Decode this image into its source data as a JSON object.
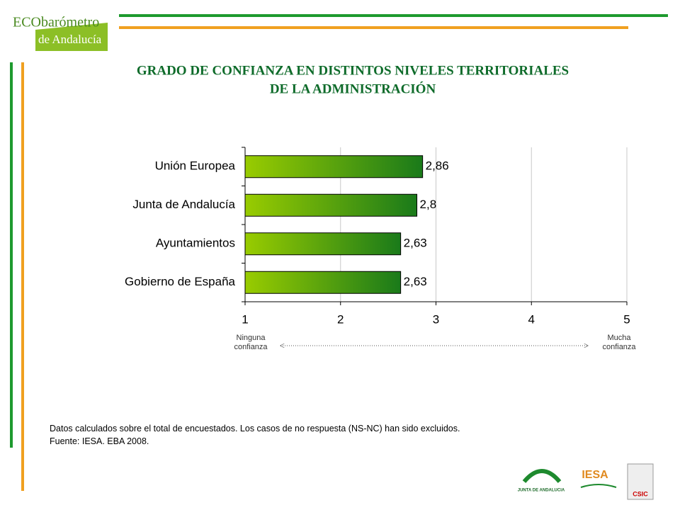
{
  "header": {
    "logo_top": "ECObarómetro",
    "logo_bottom": "de Andalucía"
  },
  "chart_data": {
    "type": "bar",
    "orientation": "horizontal",
    "title": [
      "GRADO DE CONFIANZA EN DISTINTOS NIVELES TERRITORIALES",
      "DE LA ADMINISTRACIÓN"
    ],
    "categories": [
      "Unión Europea",
      "Junta de Andalucía",
      "Ayuntamientos",
      "Gobierno de España"
    ],
    "values": [
      2.86,
      2.8,
      2.63,
      2.63
    ],
    "value_labels": [
      "2,86",
      "2,8",
      "2,63",
      "2,63"
    ],
    "color": [
      "#99cc00",
      "#1a7a1a"
    ],
    "xlim": [
      1,
      5
    ],
    "xticks": [
      1,
      2,
      3,
      4,
      5
    ],
    "grid": true,
    "annotations": [
      "Ninguna confianza",
      "Mucha confianza"
    ]
  },
  "footer": {
    "notes": [
      "Datos calculados sobre el total de encuestados. Los casos de no respuesta (NS-NC) han sido excluidos.",
      "Fuente: IESA. EBA 2008."
    ],
    "logos": [
      "JUNTA DE ANDALUCIA",
      "IESA",
      "CSIC"
    ]
  }
}
